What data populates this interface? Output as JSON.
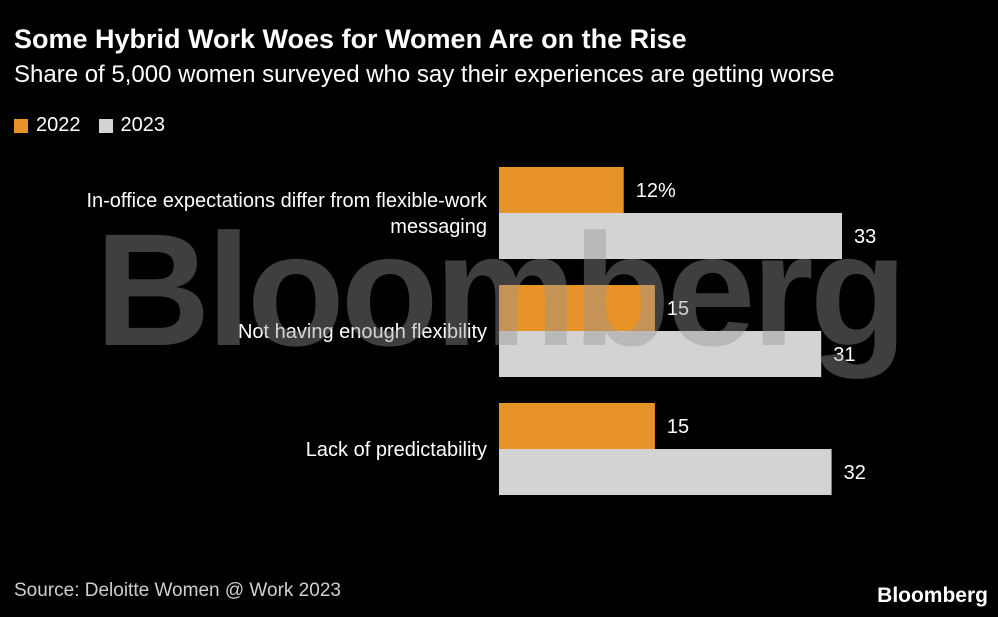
{
  "colors": {
    "background": "#000000",
    "series_2022": "#e8922a",
    "series_2023": "#d3d3d3",
    "text": "#ffffff"
  },
  "chart_data": {
    "type": "bar",
    "orientation": "horizontal",
    "title": "Some Hybrid Work Woes for Women Are on the Rise",
    "subtitle": "Share of 5,000 women surveyed who say their experiences are getting worse",
    "categories": [
      [
        "In-office expectations differ from flexible-work",
        "messaging"
      ],
      [
        "Not having enough flexibility"
      ],
      [
        "Lack of predictability"
      ]
    ],
    "series": [
      {
        "name": "2022",
        "values": [
          12,
          15,
          15
        ],
        "labels": [
          "12%",
          "15",
          "15"
        ]
      },
      {
        "name": "2023",
        "values": [
          33,
          31,
          32
        ],
        "labels": [
          "33",
          "31",
          "32"
        ]
      }
    ],
    "xlim": [
      0,
      33
    ],
    "grid": false,
    "legend": "top-left"
  },
  "watermark": "Bloomberg",
  "footer": {
    "source": "Source: Deloitte Women @ Work 2023",
    "logo": "Bloomberg"
  }
}
